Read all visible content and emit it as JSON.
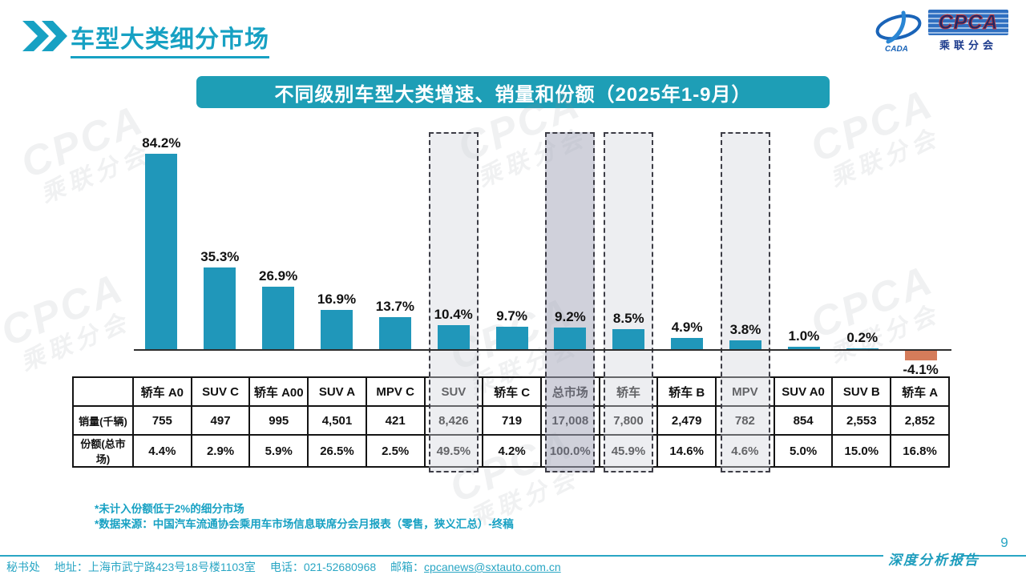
{
  "header": {
    "title": "车型大类细分市场",
    "logo": {
      "cada_text": "CADA",
      "cpca_text": "CPCA",
      "org_text": "乘联分会"
    }
  },
  "banner": {
    "title": "不同级别车型大类增速、销量和份额（2025年1-9月）"
  },
  "chart_data": {
    "type": "bar",
    "title": "不同级别车型大类增速、销量和份额（2025年1-9月）",
    "categories": [
      "轿车 A0",
      "SUV C",
      "轿车 A00",
      "SUV A",
      "MPV C",
      "SUV",
      "轿车 C",
      "总市场",
      "轿车",
      "轿车 B",
      "MPV",
      "SUV A0",
      "SUV B",
      "轿车 A"
    ],
    "series": [
      {
        "name": "增速",
        "unit": "%",
        "values": [
          84.2,
          35.3,
          26.9,
          16.9,
          13.7,
          10.4,
          9.7,
          9.2,
          8.5,
          4.9,
          3.8,
          1.0,
          0.2,
          -4.1
        ]
      },
      {
        "name": "销量(千辆)",
        "values": [
          "755",
          "497",
          "995",
          "4,501",
          "421",
          "8,426",
          "719",
          "17,008",
          "7,800",
          "2,479",
          "782",
          "854",
          "2,553",
          "2,852"
        ]
      },
      {
        "name": "份额(总市场)",
        "values": [
          "4.4%",
          "2.9%",
          "5.9%",
          "26.5%",
          "2.5%",
          "49.5%",
          "4.2%",
          "100.0%",
          "45.9%",
          "14.6%",
          "4.6%",
          "5.0%",
          "15.0%",
          "16.8%"
        ]
      }
    ],
    "value_labels": [
      "84.2%",
      "35.3%",
      "26.9%",
      "16.9%",
      "13.7%",
      "10.4%",
      "9.7%",
      "9.2%",
      "8.5%",
      "4.9%",
      "3.8%",
      "1.0%",
      "0.2%",
      "-4.1%"
    ],
    "highlighted_categories": [
      "SUV",
      "总市场",
      "轿车",
      "MPV"
    ],
    "emphasis_category": "总市场",
    "bar_color": "#2097ba",
    "negative_bar_color": "#d57c5a",
    "ylim": [
      -5,
      90
    ],
    "grid": false,
    "legend": "none"
  },
  "table": {
    "row_labels": [
      "销量(千辆)",
      "份额(总市场)"
    ]
  },
  "footnotes": [
    "*未计入份额低于2%的细分市场",
    "*数据来源：中国汽车流通协会乘用车市场信息联席分会月报表（零售，狭义汇总）-终稿"
  ],
  "footer": {
    "secretariat": "秘书处",
    "address": "地址：上海市武宁路423号18号楼1103室",
    "phone": "电话：021-52680968",
    "email_label": "邮箱：",
    "email": "cpcanews@sxtauto.com.cn",
    "page_number": "9",
    "report_label": "深度分析报告"
  },
  "watermark": {
    "line1": "CPCA",
    "line2": "乘联分会"
  }
}
